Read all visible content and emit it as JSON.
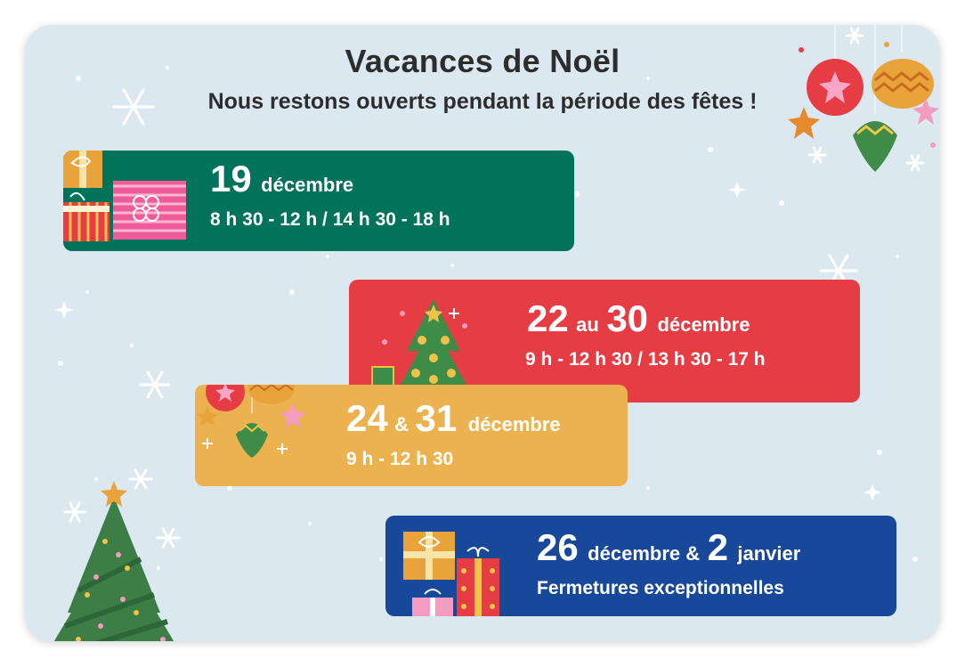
{
  "header": {
    "title": "Vacances de Noël",
    "subtitle": "Nous restons ouverts pendant la période des fêtes !"
  },
  "colors": {
    "background": "#dbe8f0",
    "green": "#00735a",
    "red": "#e63c44",
    "yellow": "#ecb250",
    "blue": "#17489a"
  },
  "schedule": [
    {
      "day1": "19",
      "month1": "décembre",
      "hours": "8 h 30 - 12 h / 14 h 30 - 18 h"
    },
    {
      "day1": "22",
      "connector": "au",
      "day2": "30",
      "month2": "décembre",
      "hours": "9 h - 12 h 30 / 13 h 30 - 17 h"
    },
    {
      "day1": "24",
      "connector": "&",
      "day2": "31",
      "month2": "décembre",
      "hours": "9 h - 12 h 30"
    },
    {
      "day1": "26",
      "month1": "décembre &",
      "day2": "2",
      "month2": "janvier",
      "hours": "Fermetures exceptionnelles"
    }
  ],
  "icons": [
    "snowflake-icon",
    "gift-icon",
    "christmas-tree-icon",
    "ornament-icon",
    "star-icon"
  ]
}
